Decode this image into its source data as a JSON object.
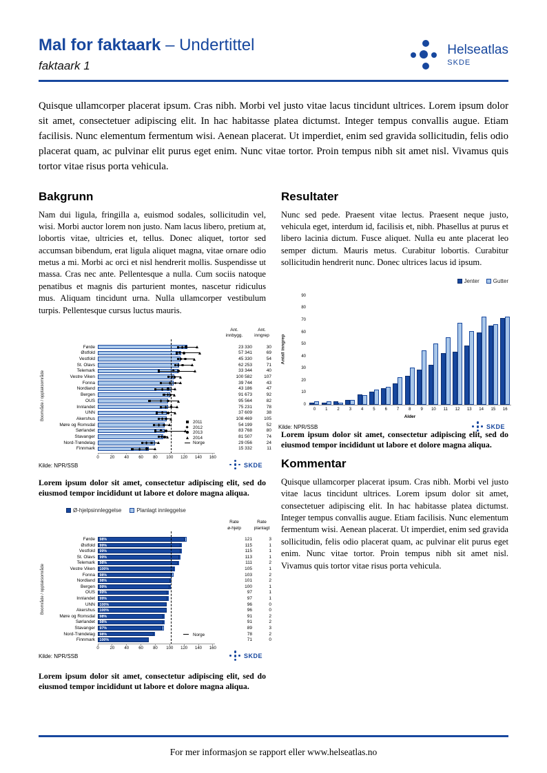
{
  "header": {
    "title_bold": "Mal for faktaark",
    "title_rest": " – Undertittel",
    "subtitle": "faktaark 1",
    "logo_name": "Helseatlas",
    "logo_sub": "SKDE"
  },
  "intro": "Quisque ullamcorper placerat ipsum. Cras nibh. Morbi vel justo vitae lacus tincidunt ultrices. Lorem ipsum dolor sit amet, consectetuer adipiscing elit. In hac habitasse platea dictumst. Integer tempus convallis augue. Etiam facilisis. Nunc elementum fermentum wisi. Aenean placerat. Ut imperdiet, enim sed gravida sollicitudin, felis odio placerat quam, ac pulvinar elit purus eget enim. Nunc vitae tortor. Proin tempus nibh sit amet nisl. Vivamus quis tortor vitae risus porta vehicula.",
  "sections": {
    "bakgrunn": {
      "heading": "Bakgrunn",
      "body": "Nam dui ligula, fringilla a, euismod sodales, sollicitudin vel, wisi. Morbi auctor lorem non justo. Nam lacus libero, pretium at, lobortis vitae, ultricies et, tellus. Donec aliquet, tortor sed accumsan bibendum, erat ligula aliquet magna, vitae ornare odio metus a mi. Morbi ac orci et nisl hendrerit mollis. Suspendisse ut massa. Cras nec ante. Pellentesque a nulla. Cum sociis natoque penatibus et magnis dis parturient montes, nascetur ridiculus mus. Aliquam tincidunt urna. Nulla ullamcorper vestibulum turpis. Pellentesque cursus luctus mauris."
    },
    "resultater": {
      "heading": "Resultater",
      "body": "Nunc sed pede. Praesent vitae lectus. Praesent neque justo, vehicula eget, interdum id, facilisis et, nibh. Phasellus at purus et libero lacinia dictum. Fusce aliquet. Nulla eu ante placerat leo semper dictum. Mauris metus. Curabitur lobortis. Curabitur sollicitudin hendrerit nunc. Donec ultrices lacus id ipsum."
    },
    "kommentar": {
      "heading": "Kommentar",
      "body": "Quisque ullamcorper placerat ipsum. Cras nibh. Morbi vel justo vitae lacus tincidunt ultrices. Lorem ipsum dolor sit amet, consectetuer adipiscing elit. In hac habitasse platea dictumst. Integer tempus convallis augue. Etiam facilisis. Nunc elementum fermentum wisi. Aenean placerat. Ut imperdiet, enim sed gravida sollicitudin, felis odio placerat quam, ac pulvinar elit purus eget enim. Nunc vitae tortor. Proin tempus nibh sit amet nisl. Vivamus quis tortor vitae risus porta vehicula."
    }
  },
  "captions": {
    "default": "Lorem ipsum dolor sit amet, consectetur adipiscing elit, sed do eiusmod tempor incididunt ut labore et dolore magna aliqua."
  },
  "footer": {
    "text": "For mer informasjon se rapport eller www.helseatlas.no"
  },
  "colors": {
    "brand": "#17479E",
    "bar_light": "#A9C7E9",
    "bar_dark": "#17479E",
    "border_dark": "#0D2D6B",
    "marker_black": "#000000"
  },
  "chart_data": [
    {
      "id": "rates-by-area",
      "type": "bar",
      "orientation": "horizontal",
      "ylabel": "Boområde / opptaksområde",
      "xticks": [
        0,
        20,
        40,
        60,
        80,
        100,
        120,
        140,
        160
      ],
      "xlim": [
        0,
        163
      ],
      "norge_line": 102,
      "col1_header": [
        "Ant.",
        "innbygg."
      ],
      "col2_header": [
        "Ant.",
        "inngrep"
      ],
      "legend": [
        {
          "marker": "square",
          "label": "2011"
        },
        {
          "marker": "diamond",
          "label": "2012"
        },
        {
          "marker": "circle",
          "label": "2013"
        },
        {
          "marker": "triangle",
          "label": "2014"
        },
        {
          "marker": "dash",
          "label": "Norge"
        }
      ],
      "source": "Kilde: NPR/SSB",
      "rows": [
        {
          "name": "Førde",
          "rate": 125,
          "innbygg": "23 330",
          "inngrep": "30",
          "markers": [
            112,
            118,
            123,
            138
          ]
        },
        {
          "name": "Østfold",
          "rate": 116,
          "innbygg": "57 341",
          "inngrep": "69",
          "markers": [
            110,
            114,
            120,
            142
          ]
        },
        {
          "name": "Vestfold",
          "rate": 115,
          "innbygg": "45 330",
          "inngrep": "54",
          "markers": [
            112,
            116,
            122,
            134
          ]
        },
        {
          "name": "St. Olavs",
          "rate": 113,
          "innbygg": "62 253",
          "inngrep": "71",
          "markers": [
            108,
            112,
            118,
            132
          ]
        },
        {
          "name": "Telemark",
          "rate": 112,
          "innbygg": "33 344",
          "inngrep": "40",
          "markers": [
            85,
            105,
            112,
            135
          ]
        },
        {
          "name": "Vestre Viken",
          "rate": 106,
          "innbygg": "100 582",
          "inngrep": "107",
          "markers": [
            98,
            103,
            107,
            115
          ]
        },
        {
          "name": "Fonna",
          "rate": 105,
          "innbygg": "39 744",
          "inngrep": "43",
          "markers": [
            88,
            100,
            108,
            115
          ]
        },
        {
          "name": "Nordland",
          "rate": 103,
          "innbygg": "43 186",
          "inngrep": "47",
          "markers": [
            80,
            90,
            98,
            108
          ]
        },
        {
          "name": "Bergen",
          "rate": 101,
          "innbygg": "91 673",
          "inngrep": "92",
          "markers": [
            92,
            97,
            101,
            107
          ]
        },
        {
          "name": "OUS",
          "rate": 98,
          "innbygg": "95 564",
          "inngrep": "82",
          "markers": [
            72,
            88,
            98,
            112
          ]
        },
        {
          "name": "Innlandet",
          "rate": 98,
          "innbygg": "75 231",
          "inngrep": "78",
          "markers": [
            88,
            95,
            102,
            110
          ]
        },
        {
          "name": "UNN",
          "rate": 96,
          "innbygg": "37 609",
          "inngrep": "38",
          "markers": [
            82,
            90,
            98,
            108
          ]
        },
        {
          "name": "Akershus",
          "rate": 96,
          "innbygg": "108 469",
          "inngrep": "105",
          "markers": [
            85,
            90,
            95,
            102
          ]
        },
        {
          "name": "Møre og Romsdal",
          "rate": 93,
          "innbygg": "54 199",
          "inngrep": "52",
          "markers": [
            78,
            85,
            92,
            100
          ]
        },
        {
          "name": "Sørlandet",
          "rate": 93,
          "innbygg": "83 768",
          "inngrep": "80",
          "markers": [
            80,
            88,
            95,
            122
          ]
        },
        {
          "name": "Stavanger",
          "rate": 91,
          "innbygg": "81 507",
          "inngrep": "74",
          "markers": [
            85,
            89,
            93,
            97
          ]
        },
        {
          "name": "Nord-Trøndelag",
          "rate": 80,
          "innbygg": "29 056",
          "inngrep": "24",
          "markers": [
            62,
            68,
            75,
            85
          ]
        },
        {
          "name": "Finnmark",
          "rate": 71,
          "innbygg": "15 332",
          "inngrep": "11",
          "markers": [
            48,
            58,
            68,
            80
          ]
        }
      ]
    },
    {
      "id": "inngrep-by-age",
      "type": "bar",
      "orientation": "vertical-grouped",
      "xlabel": "Alder",
      "ylabel": "Antall inngrep",
      "yticks": [
        0,
        10,
        20,
        30,
        40,
        50,
        60,
        70,
        80,
        90
      ],
      "ylim": [
        0,
        90
      ],
      "categories": [
        "0",
        "1",
        "2",
        "3",
        "4",
        "5",
        "6",
        "7",
        "8",
        "9",
        "10",
        "11",
        "12",
        "13",
        "14",
        "15",
        "16"
      ],
      "series": [
        {
          "name": "Jenter",
          "values": [
            2,
            2,
            3,
            4,
            9,
            11,
            14,
            18,
            24,
            29,
            33,
            43,
            44,
            49,
            60,
            66,
            72
          ]
        },
        {
          "name": "Gutter",
          "values": [
            3,
            3,
            2,
            4,
            8,
            13,
            15,
            23,
            31,
            45,
            51,
            56,
            68,
            61,
            73,
            67,
            73
          ]
        }
      ],
      "source": "Kilde: NPR/SSB"
    },
    {
      "id": "innleggelse-rates",
      "type": "bar",
      "orientation": "horizontal-stacked",
      "ylabel": "Boområde / opptaksområde",
      "legend": [
        "Ø-hjelpsinnleggelse",
        "Planlagt innleggelse"
      ],
      "col1_header": [
        "Rate",
        "ø-hjelp"
      ],
      "col2_header": [
        "Rate",
        "planlagt"
      ],
      "xticks": [
        0,
        20,
        40,
        60,
        80,
        100,
        120,
        140,
        160
      ],
      "xlim": [
        0,
        163
      ],
      "norge_line": 102,
      "norge_label": "Norge",
      "source": "Kilde: NPR/SSB",
      "rows": [
        {
          "name": "Førde",
          "pct": "98%",
          "o_hjelp": 121,
          "planlagt": 3
        },
        {
          "name": "Østfold",
          "pct": "99%",
          "o_hjelp": 115,
          "planlagt": 1
        },
        {
          "name": "Vestfold",
          "pct": "99%",
          "o_hjelp": 115,
          "planlagt": 1
        },
        {
          "name": "St. Olavs",
          "pct": "99%",
          "o_hjelp": 113,
          "planlagt": 1
        },
        {
          "name": "Telemark",
          "pct": "98%",
          "o_hjelp": 111,
          "planlagt": 2
        },
        {
          "name": "Vestre Viken",
          "pct": "100%",
          "o_hjelp": 105,
          "planlagt": 1
        },
        {
          "name": "Fonna",
          "pct": "98%",
          "o_hjelp": 103,
          "planlagt": 2
        },
        {
          "name": "Nordland",
          "pct": "98%",
          "o_hjelp": 101,
          "planlagt": 2
        },
        {
          "name": "Bergen",
          "pct": "99%",
          "o_hjelp": 100,
          "planlagt": 1
        },
        {
          "name": "OUS",
          "pct": "99%",
          "o_hjelp": 97,
          "planlagt": 1
        },
        {
          "name": "Innlandet",
          "pct": "99%",
          "o_hjelp": 97,
          "planlagt": 1
        },
        {
          "name": "UNN",
          "pct": "100%",
          "o_hjelp": 96,
          "planlagt": 0
        },
        {
          "name": "Akershus",
          "pct": "100%",
          "o_hjelp": 96,
          "planlagt": 0
        },
        {
          "name": "Møre og Romsdal",
          "pct": "98%",
          "o_hjelp": 91,
          "planlagt": 2
        },
        {
          "name": "Sørlandet",
          "pct": "98%",
          "o_hjelp": 91,
          "planlagt": 2
        },
        {
          "name": "Stavanger",
          "pct": "97%",
          "o_hjelp": 89,
          "planlagt": 3
        },
        {
          "name": "Nord-Trøndelag",
          "pct": "98%",
          "o_hjelp": 78,
          "planlagt": 2
        },
        {
          "name": "Finnmark",
          "pct": "100%",
          "o_hjelp": 71,
          "planlagt": 0
        }
      ]
    }
  ]
}
